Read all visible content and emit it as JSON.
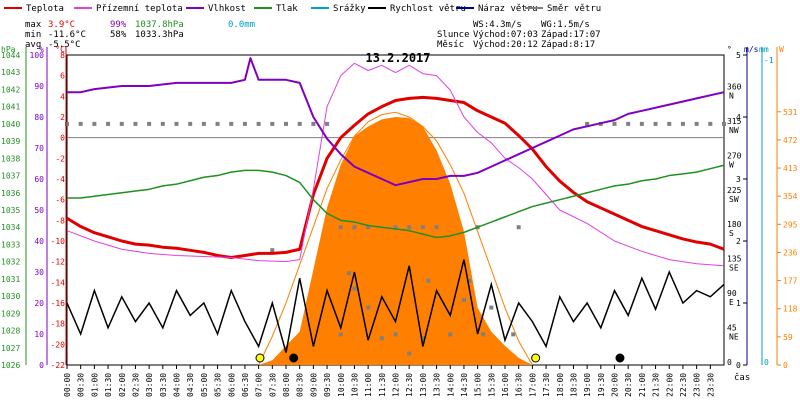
{
  "chart_data": {
    "type": "line",
    "title": "13.2.2017",
    "xlabel": "čas",
    "legend": [
      {
        "label": "Teplota",
        "color": "#e00000"
      },
      {
        "label": "Přízemní teplota",
        "color": "#e040e0"
      },
      {
        "label": "Vlhkost",
        "color": "#8000c0"
      },
      {
        "label": "Tlak",
        "color": "#209020"
      },
      {
        "label": "Srážky",
        "color": "#00a0c0"
      },
      {
        "label": "Rychlost větru",
        "color": "#000000"
      },
      {
        "label": "Náraz větru",
        "color": "#000090"
      },
      {
        "label": "Směr větru",
        "color": "#808080"
      }
    ],
    "stats": {
      "max": {
        "label": "max",
        "temp": "3.9°C",
        "hum": "99%",
        "pres": "1037.8hPa",
        "rain": "0.0mm"
      },
      "min": {
        "label": "min",
        "temp": "-11.6°C",
        "hum": "58%",
        "pres": "1033.3hPa"
      },
      "avg": {
        "label": "avg",
        "temp": "-5.5°C"
      }
    },
    "info": {
      "ws": "WS:4.3m/s",
      "wg": "WG:1.5m/s",
      "sun_label": "Slunce",
      "sunrise": "Východ:07:03",
      "sunset": "Západ:17:07",
      "moon_label": "Měsíc",
      "moonrise": "Východ:20:12",
      "moonset": "Západ:8:17"
    },
    "axes": {
      "hpa": {
        "unit": "hPa",
        "range": [
          1026,
          1044
        ],
        "ticks": [
          "1044",
          "1043",
          "1042",
          "1041",
          "1040",
          "1039",
          "1038",
          "1037",
          "1036",
          "1035",
          "1034",
          "1033",
          "1032",
          "1031",
          "1030",
          "1029",
          "1028",
          "1027",
          "1026"
        ]
      },
      "percent": {
        "unit": "%",
        "range": [
          0,
          100
        ],
        "ticks": [
          "100",
          "90",
          "80",
          "70",
          "60",
          "50",
          "40",
          "30",
          "20",
          "10",
          "0"
        ]
      },
      "celsius": {
        "unit": "°C",
        "range": [
          -22,
          8
        ],
        "ticks": [
          "8",
          "6",
          "4",
          "2",
          "0",
          "-2",
          "-4",
          "-6",
          "-8",
          "-10",
          "-12",
          "-14",
          "-16",
          "-18",
          "-20",
          "-22"
        ]
      },
      "direction": {
        "unit": "°",
        "ticks": [
          {
            "deg": "360",
            "dir": "N"
          },
          {
            "deg": "315",
            "dir": "NW"
          },
          {
            "deg": "270",
            "dir": "W"
          },
          {
            "deg": "225",
            "dir": "SW"
          },
          {
            "deg": "180",
            "dir": "S"
          },
          {
            "deg": "135",
            "dir": "SE"
          },
          {
            "deg": "90",
            "dir": "E"
          },
          {
            "deg": "45",
            "dir": "NE"
          },
          {
            "deg": "0",
            "dir": ""
          }
        ]
      },
      "wind": {
        "unit": "m/s",
        "range": [
          0,
          5
        ],
        "ticks": [
          "5",
          "4",
          "3",
          "2",
          "1",
          "0"
        ]
      },
      "rain": {
        "unit": "mm",
        "ticks": [
          "-1",
          "0"
        ]
      },
      "solar": {
        "unit": "W",
        "range": [
          0,
          650
        ],
        "ticks": [
          "531",
          "472",
          "413",
          "354",
          "295",
          "236",
          "177",
          "118",
          "59",
          "0"
        ]
      }
    },
    "x_ticks": [
      "00:00",
      "00:30",
      "01:00",
      "01:30",
      "02:00",
      "02:30",
      "03:00",
      "03:30",
      "04:00",
      "04:30",
      "05:00",
      "05:30",
      "06:00",
      "06:30",
      "07:00",
      "07:30",
      "08:00",
      "08:30",
      "09:00",
      "09:30",
      "10:00",
      "10:30",
      "11:00",
      "11:30",
      "12:00",
      "12:30",
      "13:00",
      "13:30",
      "14:00",
      "14:30",
      "15:00",
      "15:30",
      "16:00",
      "16:30",
      "17:00",
      "17:30",
      "18:00",
      "18:30",
      "19:00",
      "19:30",
      "20:00",
      "20:30",
      "21:00",
      "21:30",
      "22:00",
      "22:30",
      "23:00",
      "23:30"
    ],
    "series": [
      {
        "name": "Teplota",
        "axis": "celsius",
        "color": "#e00000",
        "x": [
          0,
          0.5,
          1,
          1.5,
          2,
          2.5,
          3,
          3.5,
          4,
          4.5,
          5,
          5.5,
          6,
          6.5,
          7,
          7.5,
          8,
          8.5,
          9,
          9.5,
          10,
          10.5,
          11,
          11.5,
          12,
          12.5,
          13,
          13.5,
          14,
          14.5,
          15,
          15.5,
          16,
          16.5,
          17,
          17.5,
          18,
          18.5,
          19,
          19.5,
          20,
          20.5,
          21,
          21.5,
          22,
          22.5,
          23,
          23.5,
          24
        ],
        "y": [
          -7.8,
          -8.6,
          -9.2,
          -9.6,
          -10.0,
          -10.3,
          -10.4,
          -10.6,
          -10.7,
          -10.9,
          -11.1,
          -11.4,
          -11.6,
          -11.4,
          -11.2,
          -11.2,
          -11.1,
          -10.8,
          -5.5,
          -2,
          0,
          1.2,
          2.3,
          3.0,
          3.6,
          3.8,
          3.9,
          3.8,
          3.6,
          3.4,
          2.6,
          2.0,
          1.4,
          0.2,
          -1.1,
          -2.8,
          -4.2,
          -5.3,
          -6.2,
          -6.8,
          -7.4,
          -8.0,
          -8.6,
          -9.0,
          -9.4,
          -9.8,
          -10.1,
          -10.3,
          -10.8
        ]
      },
      {
        "name": "Přízemní teplota",
        "axis": "celsius",
        "color": "#e040e0",
        "x": [
          0,
          1,
          2,
          3,
          4,
          5,
          6,
          7,
          8,
          8.5,
          9,
          9.5,
          10,
          10.5,
          11,
          11.5,
          12,
          12.5,
          13,
          13.5,
          14,
          14.5,
          15,
          15.5,
          16,
          16.5,
          17,
          17.5,
          18,
          19,
          20,
          21,
          22,
          23,
          24
        ],
        "y": [
          -9.0,
          -10.0,
          -10.8,
          -11.2,
          -11.4,
          -11.5,
          -11.6,
          -11.9,
          -12.0,
          -11.8,
          -5,
          3,
          6,
          7.2,
          6.5,
          7,
          6.3,
          7,
          6.2,
          6,
          4.6,
          2,
          0.5,
          -0.5,
          -2,
          -2.9,
          -4,
          -5.5,
          -7,
          -8.3,
          -10,
          -11,
          -11.8,
          -12.2,
          -12.4
        ]
      },
      {
        "name": "Vlhkost",
        "axis": "percent",
        "color": "#8000c0",
        "x": [
          0,
          0.5,
          1,
          2,
          3,
          4,
          5,
          6,
          6.5,
          6.7,
          7,
          7.5,
          8,
          8.5,
          9,
          9.5,
          10,
          10.5,
          11,
          11.5,
          12,
          12.5,
          13,
          13.5,
          14,
          14.5,
          15,
          15.5,
          16,
          16.5,
          17,
          17.5,
          18,
          18.5,
          19,
          19.5,
          20,
          20.5,
          21,
          22,
          23,
          24
        ],
        "y": [
          88,
          88,
          89,
          90,
          90,
          91,
          91,
          91,
          92,
          99,
          92,
          92,
          92,
          91,
          80,
          73,
          68,
          64,
          62,
          60,
          58,
          59,
          60,
          60,
          61,
          61,
          62,
          64,
          66,
          68,
          70,
          72,
          74,
          76,
          77,
          78,
          79,
          81,
          82,
          84,
          86,
          88
        ]
      },
      {
        "name": "Tlak",
        "axis": "hpa",
        "color": "#209020",
        "x": [
          0,
          0.5,
          1,
          1.5,
          2,
          2.5,
          3,
          3.5,
          4,
          4.5,
          5,
          5.5,
          6,
          6.5,
          7,
          7.5,
          8,
          8.5,
          9,
          9.5,
          10,
          10.5,
          11,
          11.5,
          12,
          12.5,
          13,
          13.5,
          14,
          14.5,
          15,
          15.5,
          16,
          16.5,
          17,
          17.5,
          18,
          18.5,
          19,
          19.5,
          20,
          20.5,
          21,
          21.5,
          22,
          22.5,
          23,
          23.5,
          24
        ],
        "y": [
          1035.7,
          1035.7,
          1035.8,
          1035.9,
          1036.0,
          1036.1,
          1036.2,
          1036.4,
          1036.5,
          1036.7,
          1036.9,
          1037.0,
          1037.2,
          1037.3,
          1037.3,
          1037.2,
          1037.0,
          1036.6,
          1035.6,
          1034.8,
          1034.4,
          1034.3,
          1034.1,
          1034.0,
          1033.9,
          1033.8,
          1033.6,
          1033.4,
          1033.5,
          1033.7,
          1034.0,
          1034.3,
          1034.6,
          1034.9,
          1035.2,
          1035.4,
          1035.6,
          1035.8,
          1036.0,
          1036.2,
          1036.4,
          1036.5,
          1036.7,
          1036.8,
          1037.0,
          1037.1,
          1037.2,
          1037.4,
          1037.6
        ]
      }
    ],
    "wind_speed": {
      "axis": "wind",
      "color": "#000000",
      "x": [
        0,
        0.5,
        1,
        1.5,
        2,
        2.5,
        3,
        3.5,
        4,
        4.5,
        5,
        5.5,
        6,
        6.5,
        7,
        7.5,
        8,
        8.5,
        9,
        9.5,
        10,
        10.5,
        11,
        11.5,
        12,
        12.5,
        13,
        13.5,
        14,
        14.5,
        15,
        15.5,
        16,
        16.5,
        17,
        17.5,
        18,
        18.5,
        19,
        19.5,
        20,
        20.5,
        21,
        21.5,
        22,
        22.5,
        23,
        23.5,
        24
      ],
      "y": [
        1.0,
        0.5,
        1.2,
        0.6,
        1.1,
        0.7,
        1.0,
        0.6,
        1.2,
        0.8,
        1.0,
        0.5,
        1.2,
        0.7,
        0.3,
        1.0,
        0.2,
        1.4,
        0.3,
        1.2,
        0.6,
        1.5,
        0.4,
        1.1,
        0.7,
        1.6,
        0.3,
        1.2,
        0.8,
        1.7,
        0.5,
        1.3,
        0.4,
        1.0,
        0.7,
        0.3,
        1.1,
        0.7,
        1.0,
        0.6,
        1.2,
        0.8,
        1.4,
        0.9,
        1.5,
        1.0,
        1.2,
        1.1,
        1.3
      ]
    },
    "solar": {
      "axis": "solar",
      "color": "#ff7f00",
      "x": [
        7,
        7.5,
        8,
        8.5,
        9,
        9.5,
        10,
        10.5,
        11,
        11.5,
        12,
        12.5,
        13,
        13.5,
        14,
        14.5,
        15,
        15.5,
        16,
        16.5,
        17
      ],
      "y": [
        0,
        10,
        40,
        70,
        200,
        330,
        420,
        480,
        500,
        515,
        520,
        518,
        500,
        450,
        380,
        280,
        120,
        70,
        40,
        15,
        0
      ]
    },
    "solar_theoretical": {
      "axis": "solar",
      "color": "#ff7f00",
      "x": [
        7,
        7.5,
        8,
        8.5,
        9,
        9.5,
        10,
        10.5,
        11,
        11.5,
        12,
        12.5,
        13,
        13.5,
        14,
        14.5,
        15,
        15.5,
        16,
        16.5,
        17
      ],
      "y": [
        0,
        60,
        130,
        210,
        290,
        370,
        430,
        480,
        510,
        525,
        530,
        520,
        500,
        470,
        420,
        360,
        280,
        200,
        120,
        50,
        0
      ]
    },
    "wind_direction": {
      "axis": "direction",
      "color": "#808080",
      "points": [
        [
          0,
          315
        ],
        [
          0.5,
          315
        ],
        [
          1,
          315
        ],
        [
          1.5,
          315
        ],
        [
          2,
          315
        ],
        [
          2.5,
          315
        ],
        [
          3,
          315
        ],
        [
          3.5,
          315
        ],
        [
          4,
          315
        ],
        [
          4.5,
          315
        ],
        [
          5,
          315
        ],
        [
          5.5,
          315
        ],
        [
          6,
          315
        ],
        [
          6.5,
          315
        ],
        [
          7,
          315
        ],
        [
          7.5,
          315
        ],
        [
          8,
          315
        ],
        [
          8.5,
          315
        ],
        [
          9,
          315
        ],
        [
          9.5,
          315
        ],
        [
          10,
          180
        ],
        [
          10.5,
          180
        ],
        [
          11,
          180
        ],
        [
          12,
          180
        ],
        [
          12.5,
          180
        ],
        [
          13,
          180
        ],
        [
          13.5,
          180
        ],
        [
          15,
          180
        ],
        [
          16.5,
          180
        ],
        [
          7.5,
          150
        ],
        [
          10.3,
          120
        ],
        [
          13.2,
          110
        ],
        [
          14.7,
          110
        ],
        [
          10.5,
          100
        ],
        [
          11,
          75
        ],
        [
          14.5,
          85
        ],
        [
          15.5,
          75
        ],
        [
          11.5,
          35
        ],
        [
          13,
          35
        ],
        [
          10,
          40
        ],
        [
          12,
          40
        ],
        [
          14,
          40
        ],
        [
          15.2,
          40
        ],
        [
          16.3,
          40
        ],
        [
          12.5,
          15
        ],
        [
          19,
          315
        ],
        [
          19.5,
          315
        ],
        [
          20,
          315
        ],
        [
          20.5,
          315
        ],
        [
          21,
          315
        ],
        [
          21.5,
          315
        ],
        [
          22,
          315
        ],
        [
          22.5,
          315
        ],
        [
          23,
          315
        ],
        [
          23.5,
          315
        ],
        [
          24,
          315
        ]
      ]
    },
    "markers": [
      {
        "name": "sunrise-marker",
        "x": 7.05,
        "color": "#ffff00"
      },
      {
        "name": "sunset-marker",
        "x": 17.12,
        "color": "#ffff00"
      },
      {
        "name": "moonset-marker",
        "x": 8.28,
        "color": "#000000"
      },
      {
        "name": "moonrise-marker",
        "x": 20.2,
        "color": "#000000"
      }
    ]
  }
}
